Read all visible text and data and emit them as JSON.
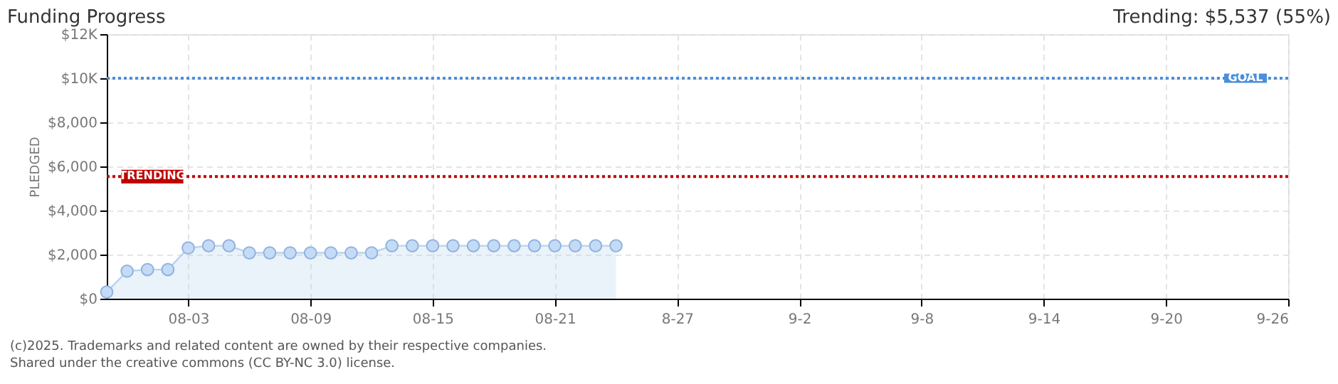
{
  "chart_data": {
    "type": "area",
    "title": "Funding Progress",
    "subtitle": "Trending: $5,537 (55%)",
    "ylabel": "PLEDGED",
    "x": [
      "2025-07-30",
      "2025-07-31",
      "2025-08-01",
      "2025-08-02",
      "2025-08-03",
      "2025-08-04",
      "2025-08-05",
      "2025-08-06",
      "2025-08-07",
      "2025-08-08",
      "2025-08-09",
      "2025-08-10",
      "2025-08-11",
      "2025-08-12",
      "2025-08-13",
      "2025-08-14",
      "2025-08-15",
      "2025-08-16",
      "2025-08-17",
      "2025-08-18",
      "2025-08-19",
      "2025-08-20",
      "2025-08-21",
      "2025-08-22",
      "2025-08-23",
      "2025-08-24"
    ],
    "series": [
      {
        "color": "#b8d3f0",
        "values": [
          300,
          1250,
          1320,
          1320,
          2300,
          2400,
          2400,
          2080,
          2080,
          2080,
          2080,
          2080,
          2080,
          2080,
          2400,
          2400,
          2400,
          2400,
          2400,
          2400,
          2400,
          2400,
          2400,
          2400,
          2400,
          2400
        ]
      }
    ],
    "xlim": [
      "2025-07-30",
      "2025-09-26"
    ],
    "xticks": [
      {
        "value": "2025-08-03",
        "label": "08-03"
      },
      {
        "value": "2025-08-09",
        "label": "08-09"
      },
      {
        "value": "2025-08-15",
        "label": "08-15"
      },
      {
        "value": "2025-08-21",
        "label": "08-21"
      },
      {
        "value": "2025-08-27",
        "label": "8-27"
      },
      {
        "value": "2025-09-02",
        "label": "9-2"
      },
      {
        "value": "2025-09-08",
        "label": "9-8"
      },
      {
        "value": "2025-09-14",
        "label": "9-14"
      },
      {
        "value": "2025-09-20",
        "label": "9-20"
      },
      {
        "value": "2025-09-26",
        "label": "9-26"
      }
    ],
    "ylim": [
      0,
      12000
    ],
    "yticks": [
      {
        "value": 0,
        "label": "$0"
      },
      {
        "value": 2000,
        "label": "$2,000"
      },
      {
        "value": 4000,
        "label": "$4,000"
      },
      {
        "value": 6000,
        "label": "$6,000"
      },
      {
        "value": 8000,
        "label": "$8,000"
      },
      {
        "value": 10000,
        "label": "$10K"
      },
      {
        "value": 12000,
        "label": "$12K"
      }
    ],
    "ref_lines": [
      {
        "axis": "y",
        "value": 10000,
        "label": "GOAL",
        "color": "#4a8fd9",
        "line_style": "dotted"
      },
      {
        "axis": "y",
        "value": 5537,
        "label": "TRENDING",
        "color": "#c00000",
        "line_style": "dotted"
      }
    ],
    "grid": true,
    "marker": "circle",
    "annotations": [
      "(c)2025. Trademarks and related content are owned by their respective companies.",
      "Shared under the creative commons (CC BY-NC 3.0) license."
    ]
  }
}
